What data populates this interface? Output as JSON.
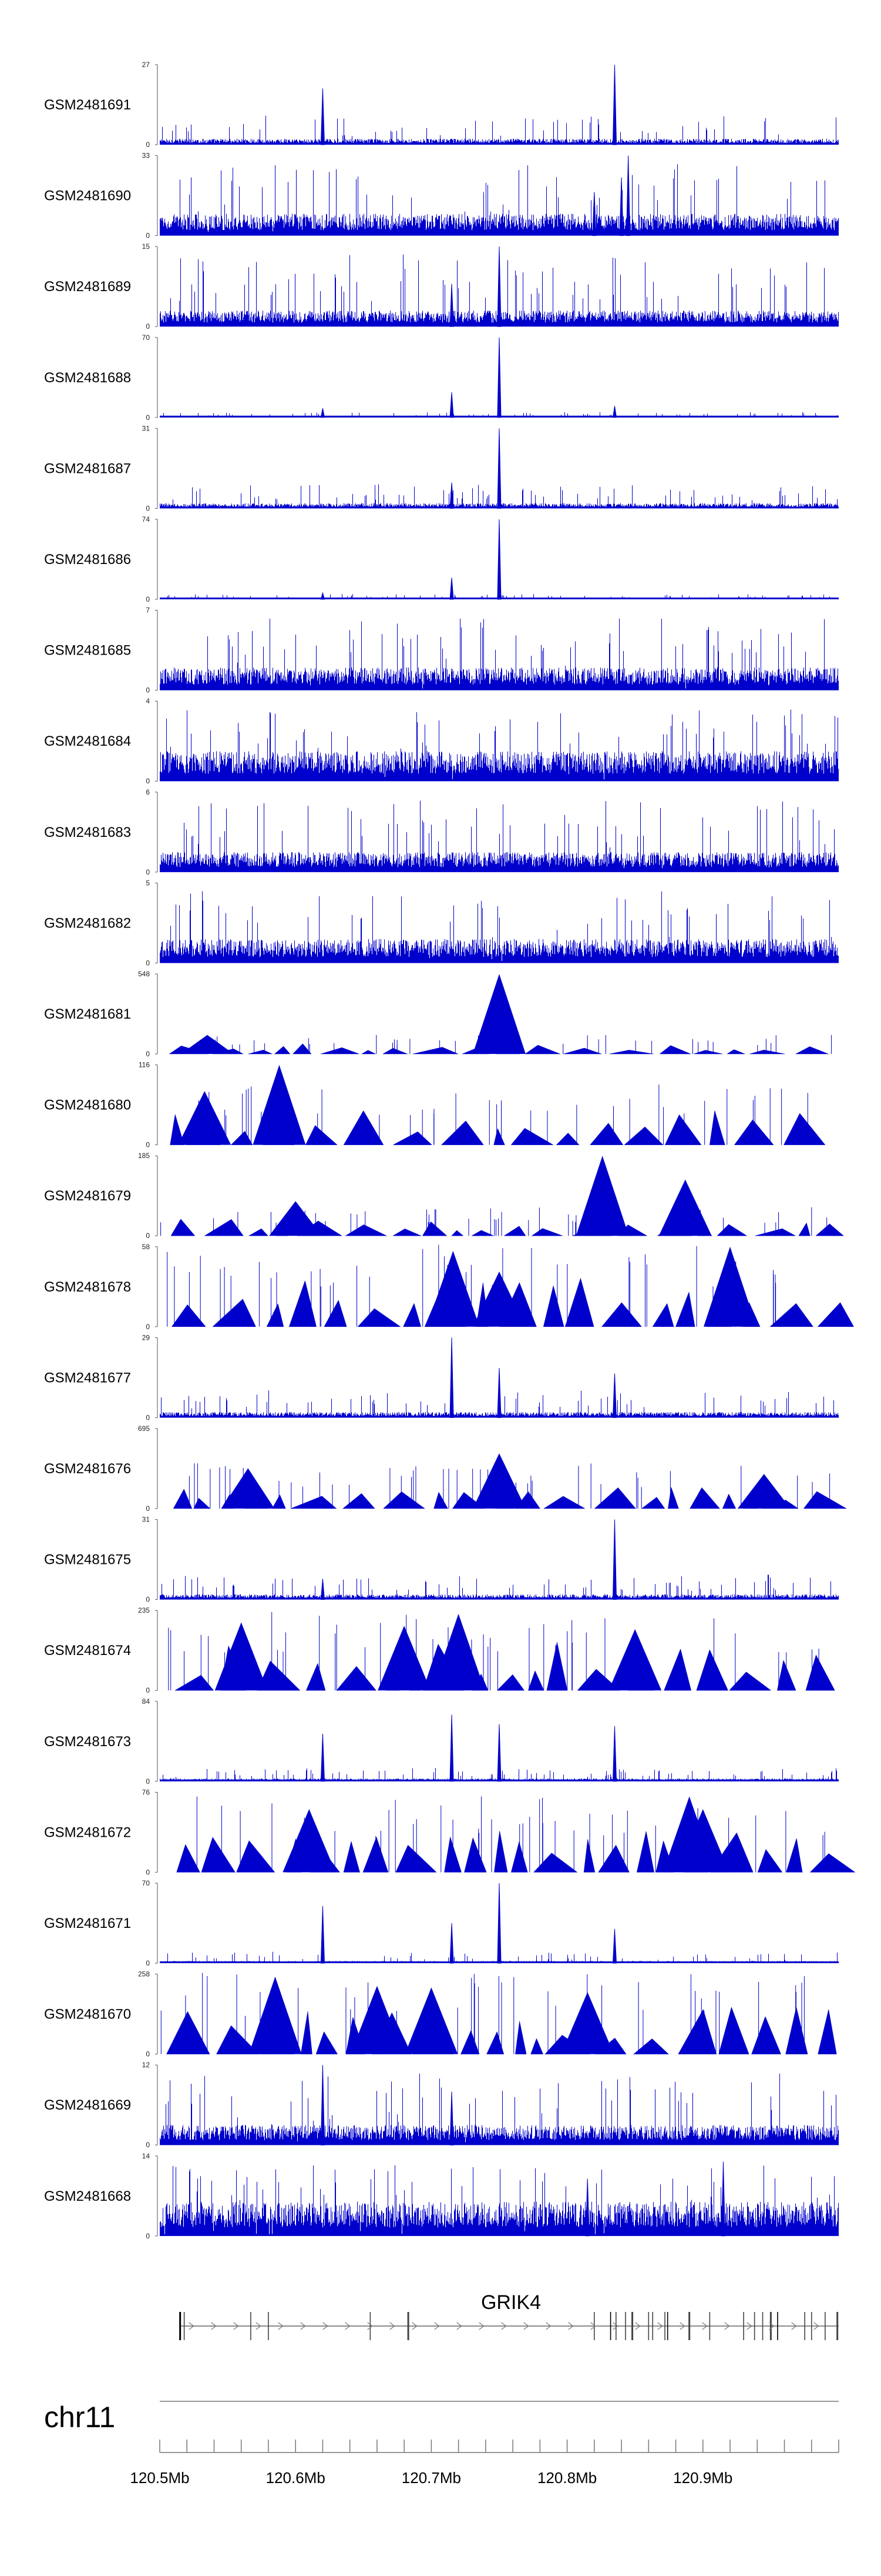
{
  "chart_data": {
    "type": "area",
    "title": "",
    "chromosome": "chr11",
    "xlim": [
      120.5,
      121.0
    ],
    "x_unit": "Mb",
    "x_ticks": [
      {
        "value": 120.5,
        "label": "120.5Mb"
      },
      {
        "value": 120.6,
        "label": "120.6Mb"
      },
      {
        "value": 120.7,
        "label": "120.7Mb"
      },
      {
        "value": 120.8,
        "label": "120.8Mb"
      },
      {
        "value": 120.9,
        "label": "120.9Mb"
      }
    ],
    "series_color": "#0000cc",
    "series": [
      {
        "name": "GSM2481691",
        "ymax": 27,
        "style": "dense",
        "baseline": 2,
        "peaks": [
          [
            120.62,
            19
          ],
          [
            120.835,
            27
          ]
        ]
      },
      {
        "name": "GSM2481690",
        "ymax": 33,
        "style": "dense",
        "baseline": 9,
        "peaks": [
          [
            120.84,
            24
          ],
          [
            120.845,
            33
          ],
          [
            120.82,
            18
          ]
        ]
      },
      {
        "name": "GSM2481689",
        "ymax": 15,
        "style": "dense",
        "baseline": 3,
        "peaks": [
          [
            120.75,
            15
          ],
          [
            120.715,
            8
          ]
        ]
      },
      {
        "name": "GSM2481688",
        "ymax": 70,
        "style": "dense",
        "baseline": 1,
        "peaks": [
          [
            120.75,
            70
          ],
          [
            120.715,
            22
          ],
          [
            120.62,
            8
          ],
          [
            120.835,
            10
          ]
        ]
      },
      {
        "name": "GSM2481687",
        "ymax": 31,
        "style": "dense",
        "baseline": 2,
        "peaks": [
          [
            120.75,
            31
          ],
          [
            120.715,
            10
          ]
        ]
      },
      {
        "name": "GSM2481686",
        "ymax": 74,
        "style": "dense",
        "baseline": 1,
        "peaks": [
          [
            120.75,
            74
          ],
          [
            120.715,
            20
          ],
          [
            120.62,
            6
          ]
        ]
      },
      {
        "name": "GSM2481685",
        "ymax": 7,
        "style": "dense",
        "baseline": 2,
        "peaks": []
      },
      {
        "name": "GSM2481684",
        "ymax": 4,
        "style": "dense",
        "baseline": 1.5,
        "peaks": []
      },
      {
        "name": "GSM2481683",
        "ymax": 6,
        "style": "dense",
        "baseline": 1.5,
        "peaks": []
      },
      {
        "name": "GSM2481682",
        "ymax": 5,
        "style": "dense",
        "baseline": 1.5,
        "peaks": []
      },
      {
        "name": "GSM2481681",
        "ymax": 548,
        "style": "triangles",
        "baseline": 60,
        "peaks": [
          [
            120.75,
            548
          ],
          [
            120.535,
            130
          ]
        ]
      },
      {
        "name": "GSM2481680",
        "ymax": 116,
        "style": "triangles",
        "baseline": 40,
        "peaks": [
          [
            120.588,
            116
          ],
          [
            120.533,
            78
          ]
        ]
      },
      {
        "name": "GSM2481679",
        "ymax": 185,
        "style": "triangles",
        "baseline": 30,
        "peaks": [
          [
            120.826,
            185
          ],
          [
            120.887,
            130
          ],
          [
            120.6,
            80
          ]
        ]
      },
      {
        "name": "GSM2481678",
        "ymax": 58,
        "style": "triangles",
        "baseline": 28,
        "peaks": [
          [
            120.92,
            58
          ],
          [
            120.716,
            55
          ],
          [
            120.75,
            40
          ]
        ]
      },
      {
        "name": "GSM2481677",
        "ymax": 29,
        "style": "dense",
        "baseline": 2,
        "peaks": [
          [
            120.715,
            29
          ],
          [
            120.75,
            18
          ],
          [
            120.835,
            16
          ]
        ]
      },
      {
        "name": "GSM2481676",
        "ymax": 695,
        "style": "triangles",
        "baseline": 180,
        "peaks": [
          [
            120.75,
            480
          ],
          [
            120.565,
            350
          ],
          [
            120.945,
            300
          ]
        ]
      },
      {
        "name": "GSM2481675",
        "ymax": 31,
        "style": "dense",
        "baseline": 2,
        "peaks": [
          [
            120.835,
            31
          ],
          [
            120.62,
            8
          ]
        ]
      },
      {
        "name": "GSM2481674",
        "ymax": 235,
        "style": "triangles",
        "baseline": 110,
        "peaks": [
          [
            120.72,
            225
          ],
          [
            120.56,
            200
          ],
          [
            120.68,
            190
          ],
          [
            120.85,
            180
          ]
        ]
      },
      {
        "name": "GSM2481673",
        "ymax": 84,
        "style": "dense",
        "baseline": 3,
        "peaks": [
          [
            120.715,
            70
          ],
          [
            120.75,
            60
          ],
          [
            120.835,
            58
          ],
          [
            120.62,
            50
          ]
        ]
      },
      {
        "name": "GSM2481672",
        "ymax": 76,
        "style": "triangles",
        "baseline": 34,
        "peaks": [
          [
            120.89,
            72
          ],
          [
            120.9,
            60
          ],
          [
            120.61,
            60
          ]
        ]
      },
      {
        "name": "GSM2481671",
        "ymax": 70,
        "style": "dense",
        "baseline": 2,
        "peaks": [
          [
            120.75,
            70
          ],
          [
            120.62,
            50
          ],
          [
            120.715,
            35
          ],
          [
            120.835,
            30
          ]
        ]
      },
      {
        "name": "GSM2481670",
        "ymax": 258,
        "style": "triangles",
        "baseline": 120,
        "peaks": [
          [
            120.585,
            250
          ],
          [
            120.66,
            220
          ],
          [
            120.7,
            215
          ],
          [
            120.815,
            200
          ]
        ]
      },
      {
        "name": "GSM2481669",
        "ymax": 12,
        "style": "dense",
        "baseline": 3,
        "peaks": [
          [
            120.62,
            12
          ],
          [
            120.715,
            8
          ]
        ]
      },
      {
        "name": "GSM2481668",
        "ymax": 14,
        "style": "dense",
        "baseline": 6,
        "peaks": [
          [
            120.915,
            13
          ],
          [
            120.815,
            10
          ]
        ]
      }
    ],
    "gene": {
      "name": "GRIK4",
      "strand": "+",
      "start": 120.515,
      "end": 121.0,
      "exons": [
        120.515,
        120.518,
        120.567,
        120.58,
        120.655,
        120.683,
        120.82,
        120.832,
        120.836,
        120.843,
        120.848,
        120.86,
        120.863,
        120.872,
        120.874,
        120.89,
        120.905,
        120.93,
        120.938,
        120.944,
        120.95,
        120.955,
        120.975,
        120.98,
        120.99,
        120.999
      ]
    }
  }
}
